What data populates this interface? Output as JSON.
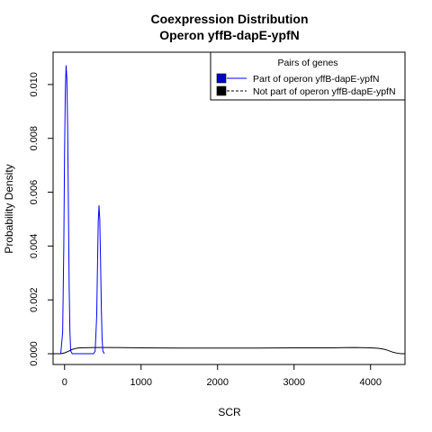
{
  "chart_data": {
    "type": "line",
    "title": "Coexpression Distribution",
    "subtitle": "Operon yffB-dapE-ypfN",
    "xlabel": "SCR",
    "ylabel": "Probability Density",
    "xlim": [
      -150,
      4450
    ],
    "ylim": [
      -0.0004,
      0.0112
    ],
    "x_ticks": [
      0,
      1000,
      2000,
      3000,
      4000
    ],
    "x_tick_labels": [
      "0",
      "1000",
      "2000",
      "3000",
      "4000"
    ],
    "y_ticks": [
      0.0,
      0.002,
      0.004,
      0.006,
      0.008,
      0.01
    ],
    "y_tick_labels": [
      "0.000",
      "0.002",
      "0.004",
      "0.006",
      "0.008",
      "0.010"
    ],
    "grid": false,
    "legend": {
      "title": "Pairs of genes",
      "placement": "top-right"
    },
    "series": [
      {
        "name": "Part of operon yffB-dapE-ypfN",
        "color": "#0000ff",
        "line_style": "solid",
        "legend_fill": "#0000cc",
        "x": [
          -50,
          -25,
          -10,
          0,
          10,
          20,
          30,
          40,
          50,
          60,
          70,
          80,
          100,
          150,
          200,
          300,
          380,
          400,
          420,
          430,
          440,
          450,
          460,
          470,
          480,
          490,
          500,
          520
        ],
        "y": [
          0.0,
          0.0008,
          0.004,
          0.0075,
          0.0098,
          0.0107,
          0.0102,
          0.0085,
          0.0055,
          0.0025,
          0.0008,
          0.0001,
          0.0,
          0.0,
          0.0,
          0.0,
          0.0,
          0.0001,
          0.0014,
          0.0032,
          0.0049,
          0.0055,
          0.005,
          0.0035,
          0.0018,
          0.0006,
          0.0001,
          0.0
        ]
      },
      {
        "name": "Not part of operon yffB-dapE-ypfN",
        "color": "#000000",
        "line_style": "solid",
        "legend_fill": "#000000",
        "x": [
          -150,
          -50,
          0,
          50,
          100,
          150,
          200,
          400,
          600,
          1000,
          1500,
          2000,
          2500,
          3000,
          3500,
          3800,
          4000,
          4100,
          4150,
          4200,
          4250,
          4300,
          4350,
          4400,
          4450
        ],
        "y": [
          0.0,
          0.0,
          3e-05,
          9e-05,
          0.00016,
          0.0002,
          0.00022,
          0.00023,
          0.00023,
          0.00022,
          0.00021,
          0.00021,
          0.00021,
          0.00022,
          0.00022,
          0.00023,
          0.00022,
          0.0002,
          0.00018,
          0.00015,
          0.0001,
          5e-05,
          2e-05,
          0.0,
          0.0
        ]
      }
    ]
  }
}
